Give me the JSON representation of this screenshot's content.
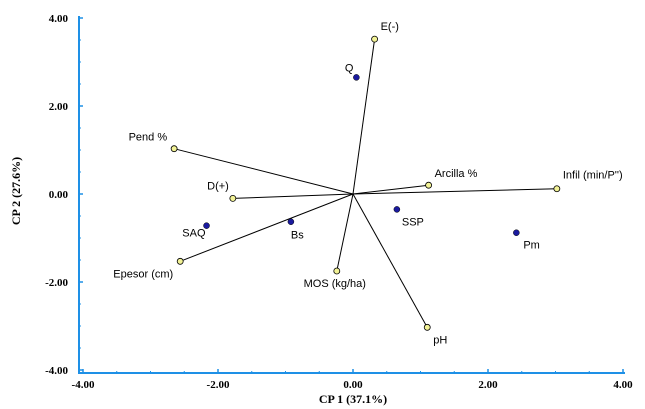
{
  "chart_data": {
    "type": "scatter",
    "title": "",
    "xlabel": "CP 1 (37.1%)",
    "ylabel": "CP 2 (27.6%)",
    "xlim": [
      -4.0,
      4.0
    ],
    "ylim": [
      -4.0,
      4.0
    ],
    "xticks": [
      "-4.00",
      "-2.00",
      "0.00",
      "2.00",
      "4.00"
    ],
    "yticks": [
      "-4.00",
      "-2.00",
      "0.00",
      "2.00",
      "4.00"
    ],
    "grid": false,
    "colors": {
      "axis": "#1e90e6",
      "vector_line": "#000000",
      "vector_marker": "#f2f296",
      "site_marker": "#1a1a9e"
    },
    "vectors": [
      {
        "label": "E(-)",
        "x": 0.32,
        "y": 3.52
      },
      {
        "label": "Pend %",
        "x": -2.65,
        "y": 1.03
      },
      {
        "label": "Arcilla %",
        "x": 1.12,
        "y": 0.2
      },
      {
        "label": "Infil (min/P'')",
        "x": 3.02,
        "y": 0.12
      },
      {
        "label": "D(+)",
        "x": -1.78,
        "y": -0.1
      },
      {
        "label": "Epesor (cm)",
        "x": -2.56,
        "y": -1.53
      },
      {
        "label": "MOS (kg/ha)",
        "x": -0.24,
        "y": -1.75
      },
      {
        "label": "pH",
        "x": 1.1,
        "y": -3.03
      }
    ],
    "sites": [
      {
        "label": "Q",
        "x": 0.05,
        "y": 2.65
      },
      {
        "label": "SAQ",
        "x": -2.17,
        "y": -0.72
      },
      {
        "label": "Bs",
        "x": -0.92,
        "y": -0.63
      },
      {
        "label": "SSP",
        "x": 0.65,
        "y": -0.35
      },
      {
        "label": "Pm",
        "x": 2.42,
        "y": -0.88
      }
    ]
  }
}
